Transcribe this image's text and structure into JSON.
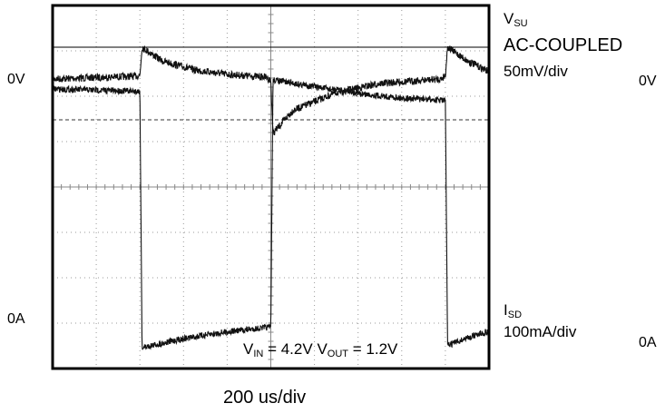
{
  "chart_data": {
    "type": "line",
    "title": "",
    "xlabel": "200 us/div",
    "ylabel": "",
    "grid": true,
    "x_divisions": 10,
    "y_divisions": 8,
    "left_labels": {
      "upper_zero": "0V",
      "lower_zero": "0A"
    },
    "right_labels": {
      "channel1": {
        "symbol": "V",
        "subscript": "SU",
        "coupling": "AC-COUPLED",
        "scale": "50mV/div",
        "zero": "0V"
      },
      "channel2": {
        "symbol": "I",
        "subscript": "SD",
        "scale": "100mA/div",
        "zero": "0A"
      }
    },
    "annotation": {
      "vin_symbol": "V",
      "vin_sub": "IN",
      "vin_value": "= 4.2V",
      "vout_symbol": "V",
      "vout_sub": "OUT",
      "vout_value": "= 1.2V"
    },
    "time_unit": "us",
    "load_step_times": [
      400,
      1000,
      1800
    ],
    "series": [
      {
        "name": "VSU",
        "unit": "mV",
        "values_x": [
          0,
          380,
          400,
          410,
          500,
          650,
          800,
          980,
          1000,
          1010,
          1100,
          1300,
          1500,
          1780,
          1800,
          1810,
          1900,
          2000
        ],
        "values_y": [
          0,
          3,
          4,
          35,
          20,
          10,
          5,
          2,
          -2,
          -60,
          -35,
          -15,
          -5,
          0,
          4,
          35,
          20,
          8
        ]
      },
      {
        "name": "ISD",
        "unit": "mA",
        "values_x": [
          0,
          390,
          400,
          410,
          600,
          800,
          990,
          1000,
          1010,
          1200,
          1400,
          1600,
          1790,
          1800,
          1810,
          1950,
          2000
        ],
        "values_y": [
          540,
          535,
          535,
          -30,
          -10,
          5,
          15,
          15,
          560,
          545,
          530,
          520,
          515,
          515,
          -25,
          0,
          5
        ]
      }
    ]
  }
}
